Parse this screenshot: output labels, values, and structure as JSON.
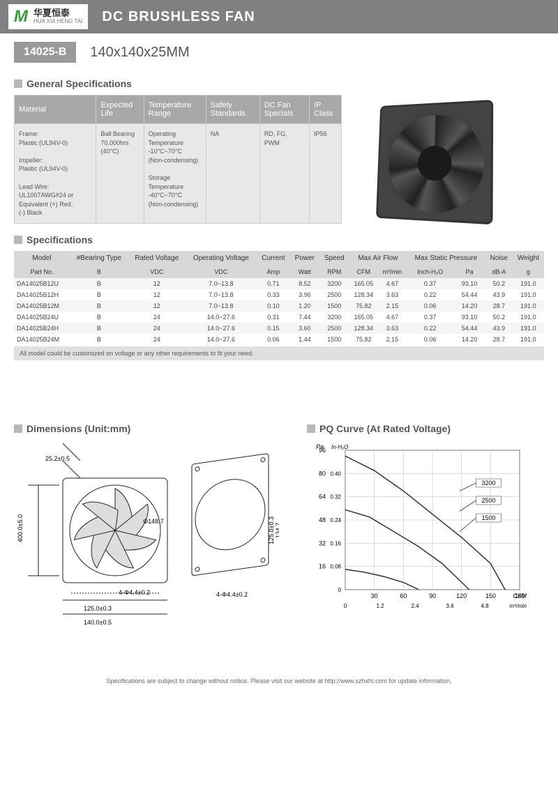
{
  "header": {
    "logo_cn": "华夏恒泰",
    "logo_en": "HUA XIA HENG TAI",
    "title": "DC BRUSHLESS FAN"
  },
  "model": {
    "code": "14025-B",
    "dim": "140x140x25MM"
  },
  "sections": {
    "general": "General Specifications",
    "specs": "Specifications",
    "dimensions": "Dimensions (Unit:mm)",
    "pq": "PQ Curve (At Rated Voltage)"
  },
  "gen": {
    "headers": [
      "Material",
      "Expected Life",
      "Temperature Range",
      "Safety Standards",
      "DC Fan Specials",
      "IP Class"
    ],
    "material": "Frame:\nPlastic (UL94V-0)\n\nImpeller:\nPlastic (UL94V-0)\n\nLead Wire:\nUL1007AWG#24 or Equivalent (+) Red,\n(-) Black",
    "life": "Ball Bearing\n70,000hrs (40°C)",
    "temp": "Operating Temperature\n-10°C~70°C\n(Non-condensing)\n\nStorage Temperature\n-40°C~70°C\n(Non-condensing)",
    "safety": "NA",
    "specials": "RD, FG,\nPWM",
    "ip": "IP56"
  },
  "spec": {
    "h1": [
      "Model",
      "#Bearing Type",
      "Rated Voltage",
      "Operating Voltage",
      "Current",
      "Power",
      "Speed",
      "Max Air Flow",
      "",
      "Max Static Pressure",
      "",
      "Noise",
      "Weight"
    ],
    "h2": [
      "Part No.",
      "B",
      "VDC",
      "VDC",
      "Amp",
      "Watt",
      "RPM",
      "CFM",
      "m³/min",
      "Inch-H₂O",
      "Pa",
      "dB-A",
      "g"
    ],
    "rows": [
      [
        "DA14025B12U",
        "B",
        "12",
        "7.0~13.8",
        "0.71",
        "8.52",
        "3200",
        "165.05",
        "4.67",
        "0.37",
        "93.10",
        "50.2",
        "191.0"
      ],
      [
        "DA14025B12H",
        "B",
        "12",
        "7.0~13.8",
        "0.33",
        "3.96",
        "2500",
        "128.34",
        "3.63",
        "0.22",
        "54.44",
        "43.9",
        "191.0"
      ],
      [
        "DA14025B12M",
        "B",
        "12",
        "7.0~13.8",
        "0.10",
        "1.20",
        "1500",
        "75.82",
        "2.15",
        "0.06",
        "14.20",
        "28.7",
        "191.0"
      ],
      [
        "DA14025B24U",
        "B",
        "24",
        "14.0~27.6",
        "0.31",
        "7.44",
        "3200",
        "165.05",
        "4.67",
        "0.37",
        "93.10",
        "50.2",
        "191.0"
      ],
      [
        "DA14025B24H",
        "B",
        "24",
        "14.0~27.6",
        "0.15",
        "3.60",
        "2500",
        "128.34",
        "3.63",
        "0.22",
        "54.44",
        "43.9",
        "191.0"
      ],
      [
        "DA14025B24M",
        "B",
        "24",
        "14.0~27.6",
        "0.06",
        "1.44",
        "1500",
        "75.82",
        "2.15",
        "0.06",
        "14.20",
        "28.7",
        "191.0"
      ]
    ],
    "note": "All model could be customized on voltage or any other requirements to fit your need."
  },
  "dim": {
    "labels": {
      "d1": "140.0±0.5",
      "d2": "125.0±0.3",
      "d3": "125.0±0.3",
      "d4": "134.7",
      "d5": "25.2±0.5",
      "d6": "400.0±5.0",
      "d7": "Φ148.7",
      "d8": "4-Φ4.4±0.2",
      "d9": "4-Φ4.4±0.2"
    }
  },
  "pq": {
    "ylabel_pa": "Pa",
    "ylabel_in": "In-H₂O",
    "xlabel_cfm": "CFM",
    "xlabel_m3": "m³/min",
    "y_pa": [
      0,
      16,
      32,
      48,
      64,
      80,
      96
    ],
    "y_in": [
      "0",
      "0.08",
      "0.16",
      "0.24",
      "0.32",
      "0.40"
    ],
    "x_cfm": [
      0,
      30,
      60,
      90,
      120,
      150,
      180
    ],
    "x_m3": [
      "0",
      "1.2",
      "2.4",
      "3.6",
      "4.8"
    ],
    "series": [
      "3200",
      "2500",
      "1500"
    ],
    "curves": [
      [
        [
          0,
          92
        ],
        [
          30,
          82
        ],
        [
          60,
          68
        ],
        [
          90,
          52
        ],
        [
          120,
          36
        ],
        [
          150,
          18
        ],
        [
          165,
          0
        ]
      ],
      [
        [
          0,
          55
        ],
        [
          25,
          50
        ],
        [
          50,
          40
        ],
        [
          75,
          30
        ],
        [
          100,
          18
        ],
        [
          128,
          0
        ]
      ],
      [
        [
          0,
          14
        ],
        [
          20,
          12
        ],
        [
          40,
          9
        ],
        [
          60,
          5
        ],
        [
          76,
          0
        ]
      ]
    ],
    "colors": {
      "line": "#555",
      "grid": "#aaa",
      "bg": "#fff"
    }
  },
  "footer": "Specifications are subject to change without notice. Please visit our website at http://www.szhxht.com for update information."
}
